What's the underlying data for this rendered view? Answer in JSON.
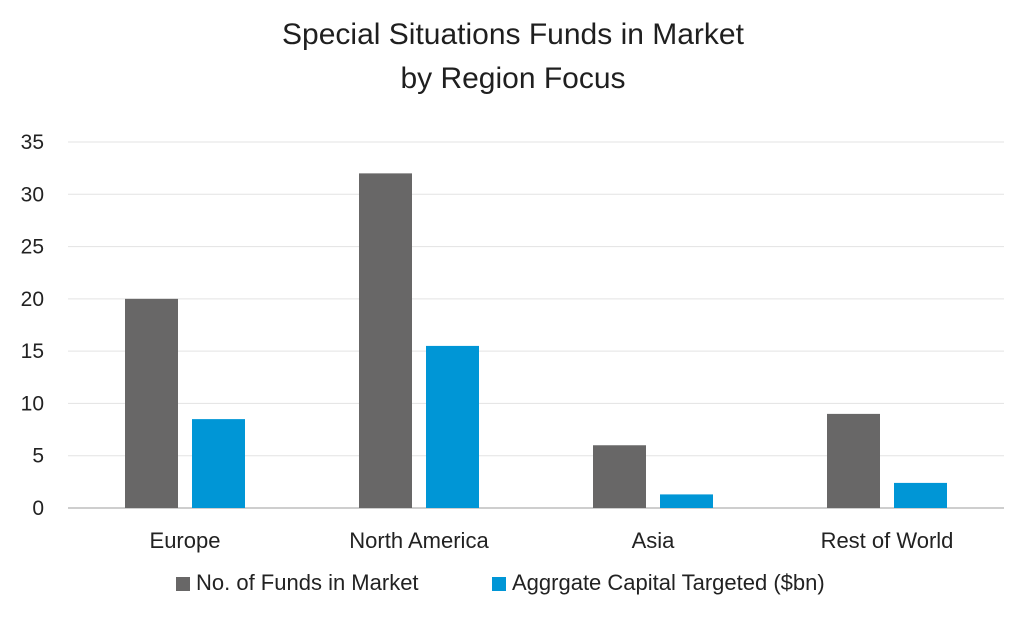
{
  "chart_data": {
    "type": "bar",
    "title_lines": [
      "Special Situations Funds in Market",
      "by Region Focus"
    ],
    "categories": [
      "Europe",
      "North America",
      "Asia",
      "Rest of World"
    ],
    "series": [
      {
        "name": "No. of Funds in Market",
        "values": [
          20,
          32,
          6,
          9
        ],
        "color": "#686767"
      },
      {
        "name": "Aggrgate Capital Targeted ($bn)",
        "values": [
          8.5,
          15.5,
          1.3,
          2.4
        ],
        "color": "#0096d6"
      }
    ],
    "ylim": [
      0,
      35
    ],
    "yticks": [
      0,
      5,
      10,
      15,
      20,
      25,
      30,
      35
    ],
    "grid": true,
    "legend": "bottom",
    "gridColor": "#e3e3e3",
    "axisColor": "#bdbdbd"
  }
}
